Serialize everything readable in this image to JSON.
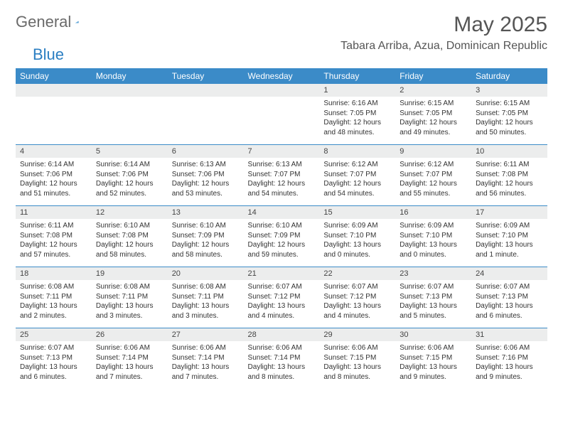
{
  "logo": {
    "word1": "General",
    "word2": "Blue"
  },
  "title": "May 2025",
  "location": "Tabara Arriba, Azua, Dominican Republic",
  "colors": {
    "header_bg": "#3b8bc8",
    "header_text": "#ffffff",
    "daynum_bg": "#eceded",
    "rule": "#3b8bc8",
    "body_text": "#333333",
    "title_text": "#555555",
    "logo_gray": "#6a6a6a",
    "logo_blue": "#2a7ec2",
    "background": "#ffffff"
  },
  "fonts": {
    "family": "Arial",
    "title_size": 30,
    "location_size": 16,
    "dayhead_size": 12,
    "daynum_size": 11,
    "detail_size": 10
  },
  "day_names": [
    "Sunday",
    "Monday",
    "Tuesday",
    "Wednesday",
    "Thursday",
    "Friday",
    "Saturday"
  ],
  "weeks": [
    [
      null,
      null,
      null,
      null,
      {
        "n": "1",
        "sr": "Sunrise: 6:16 AM",
        "ss": "Sunset: 7:05 PM",
        "d1": "Daylight: 12 hours",
        "d2": "and 48 minutes."
      },
      {
        "n": "2",
        "sr": "Sunrise: 6:15 AM",
        "ss": "Sunset: 7:05 PM",
        "d1": "Daylight: 12 hours",
        "d2": "and 49 minutes."
      },
      {
        "n": "3",
        "sr": "Sunrise: 6:15 AM",
        "ss": "Sunset: 7:05 PM",
        "d1": "Daylight: 12 hours",
        "d2": "and 50 minutes."
      }
    ],
    [
      {
        "n": "4",
        "sr": "Sunrise: 6:14 AM",
        "ss": "Sunset: 7:06 PM",
        "d1": "Daylight: 12 hours",
        "d2": "and 51 minutes."
      },
      {
        "n": "5",
        "sr": "Sunrise: 6:14 AM",
        "ss": "Sunset: 7:06 PM",
        "d1": "Daylight: 12 hours",
        "d2": "and 52 minutes."
      },
      {
        "n": "6",
        "sr": "Sunrise: 6:13 AM",
        "ss": "Sunset: 7:06 PM",
        "d1": "Daylight: 12 hours",
        "d2": "and 53 minutes."
      },
      {
        "n": "7",
        "sr": "Sunrise: 6:13 AM",
        "ss": "Sunset: 7:07 PM",
        "d1": "Daylight: 12 hours",
        "d2": "and 54 minutes."
      },
      {
        "n": "8",
        "sr": "Sunrise: 6:12 AM",
        "ss": "Sunset: 7:07 PM",
        "d1": "Daylight: 12 hours",
        "d2": "and 54 minutes."
      },
      {
        "n": "9",
        "sr": "Sunrise: 6:12 AM",
        "ss": "Sunset: 7:07 PM",
        "d1": "Daylight: 12 hours",
        "d2": "and 55 minutes."
      },
      {
        "n": "10",
        "sr": "Sunrise: 6:11 AM",
        "ss": "Sunset: 7:08 PM",
        "d1": "Daylight: 12 hours",
        "d2": "and 56 minutes."
      }
    ],
    [
      {
        "n": "11",
        "sr": "Sunrise: 6:11 AM",
        "ss": "Sunset: 7:08 PM",
        "d1": "Daylight: 12 hours",
        "d2": "and 57 minutes."
      },
      {
        "n": "12",
        "sr": "Sunrise: 6:10 AM",
        "ss": "Sunset: 7:08 PM",
        "d1": "Daylight: 12 hours",
        "d2": "and 58 minutes."
      },
      {
        "n": "13",
        "sr": "Sunrise: 6:10 AM",
        "ss": "Sunset: 7:09 PM",
        "d1": "Daylight: 12 hours",
        "d2": "and 58 minutes."
      },
      {
        "n": "14",
        "sr": "Sunrise: 6:10 AM",
        "ss": "Sunset: 7:09 PM",
        "d1": "Daylight: 12 hours",
        "d2": "and 59 minutes."
      },
      {
        "n": "15",
        "sr": "Sunrise: 6:09 AM",
        "ss": "Sunset: 7:10 PM",
        "d1": "Daylight: 13 hours",
        "d2": "and 0 minutes."
      },
      {
        "n": "16",
        "sr": "Sunrise: 6:09 AM",
        "ss": "Sunset: 7:10 PM",
        "d1": "Daylight: 13 hours",
        "d2": "and 0 minutes."
      },
      {
        "n": "17",
        "sr": "Sunrise: 6:09 AM",
        "ss": "Sunset: 7:10 PM",
        "d1": "Daylight: 13 hours",
        "d2": "and 1 minute."
      }
    ],
    [
      {
        "n": "18",
        "sr": "Sunrise: 6:08 AM",
        "ss": "Sunset: 7:11 PM",
        "d1": "Daylight: 13 hours",
        "d2": "and 2 minutes."
      },
      {
        "n": "19",
        "sr": "Sunrise: 6:08 AM",
        "ss": "Sunset: 7:11 PM",
        "d1": "Daylight: 13 hours",
        "d2": "and 3 minutes."
      },
      {
        "n": "20",
        "sr": "Sunrise: 6:08 AM",
        "ss": "Sunset: 7:11 PM",
        "d1": "Daylight: 13 hours",
        "d2": "and 3 minutes."
      },
      {
        "n": "21",
        "sr": "Sunrise: 6:07 AM",
        "ss": "Sunset: 7:12 PM",
        "d1": "Daylight: 13 hours",
        "d2": "and 4 minutes."
      },
      {
        "n": "22",
        "sr": "Sunrise: 6:07 AM",
        "ss": "Sunset: 7:12 PM",
        "d1": "Daylight: 13 hours",
        "d2": "and 4 minutes."
      },
      {
        "n": "23",
        "sr": "Sunrise: 6:07 AM",
        "ss": "Sunset: 7:13 PM",
        "d1": "Daylight: 13 hours",
        "d2": "and 5 minutes."
      },
      {
        "n": "24",
        "sr": "Sunrise: 6:07 AM",
        "ss": "Sunset: 7:13 PM",
        "d1": "Daylight: 13 hours",
        "d2": "and 6 minutes."
      }
    ],
    [
      {
        "n": "25",
        "sr": "Sunrise: 6:07 AM",
        "ss": "Sunset: 7:13 PM",
        "d1": "Daylight: 13 hours",
        "d2": "and 6 minutes."
      },
      {
        "n": "26",
        "sr": "Sunrise: 6:06 AM",
        "ss": "Sunset: 7:14 PM",
        "d1": "Daylight: 13 hours",
        "d2": "and 7 minutes."
      },
      {
        "n": "27",
        "sr": "Sunrise: 6:06 AM",
        "ss": "Sunset: 7:14 PM",
        "d1": "Daylight: 13 hours",
        "d2": "and 7 minutes."
      },
      {
        "n": "28",
        "sr": "Sunrise: 6:06 AM",
        "ss": "Sunset: 7:14 PM",
        "d1": "Daylight: 13 hours",
        "d2": "and 8 minutes."
      },
      {
        "n": "29",
        "sr": "Sunrise: 6:06 AM",
        "ss": "Sunset: 7:15 PM",
        "d1": "Daylight: 13 hours",
        "d2": "and 8 minutes."
      },
      {
        "n": "30",
        "sr": "Sunrise: 6:06 AM",
        "ss": "Sunset: 7:15 PM",
        "d1": "Daylight: 13 hours",
        "d2": "and 9 minutes."
      },
      {
        "n": "31",
        "sr": "Sunrise: 6:06 AM",
        "ss": "Sunset: 7:16 PM",
        "d1": "Daylight: 13 hours",
        "d2": "and 9 minutes."
      }
    ]
  ]
}
